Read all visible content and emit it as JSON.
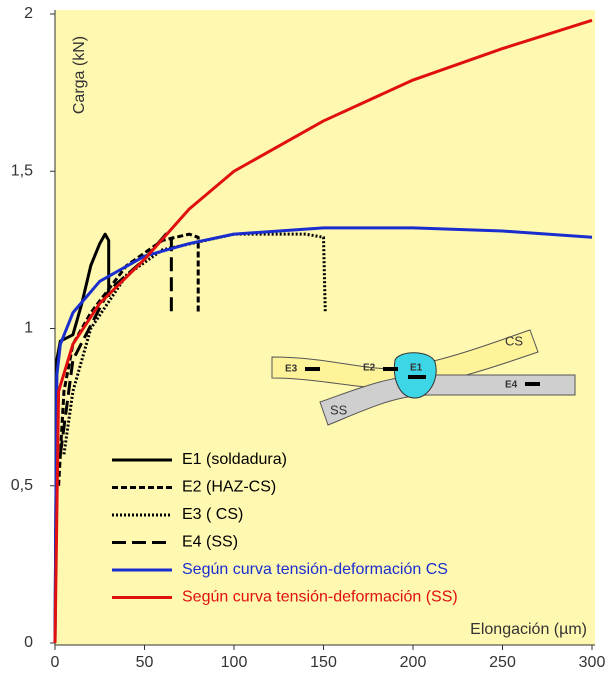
{
  "chart_data": {
    "type": "line",
    "ylabel": "Carga (kN)",
    "xlabel": "Elongación (µm)",
    "xlim": [
      0,
      300
    ],
    "ylim": [
      0,
      2
    ],
    "xticks": [
      0,
      50,
      100,
      150,
      200,
      250,
      300
    ],
    "yticks": [
      0,
      {
        "value": 0.5,
        "label": "0,5"
      },
      1,
      {
        "value": 1.5,
        "label": "1,5"
      },
      2
    ],
    "background": "#fff8b0",
    "series": [
      {
        "name": "E1 (soldadura)",
        "color": "#000000",
        "dash": "none",
        "x": [
          0,
          1,
          3,
          10,
          15,
          20,
          25,
          28,
          30,
          30
        ],
        "values": [
          0,
          0.9,
          0.96,
          0.98,
          1.08,
          1.2,
          1.27,
          1.3,
          1.28,
          1.1
        ]
      },
      {
        "name": "E2 (HAZ-CS)",
        "color": "#000000",
        "dash": "6,3",
        "x": [
          2,
          5,
          10,
          20,
          40,
          60,
          75,
          80,
          80
        ],
        "values": [
          0.5,
          0.8,
          0.95,
          1.05,
          1.2,
          1.28,
          1.3,
          1.29,
          1.05
        ]
      },
      {
        "name": "E3 ( CS)",
        "color": "#000000",
        "dash": "2,2",
        "x": [
          5,
          10,
          20,
          40,
          60,
          100,
          140,
          150,
          151
        ],
        "values": [
          0.6,
          0.8,
          1.0,
          1.17,
          1.25,
          1.3,
          1.3,
          1.29,
          1.05
        ]
      },
      {
        "name": "E4 (SS)",
        "color": "#000000",
        "dash": "14,6",
        "x": [
          3,
          10,
          30,
          50,
          62,
          65,
          65
        ],
        "values": [
          0.6,
          0.9,
          1.12,
          1.22,
          1.3,
          1.29,
          1.05
        ]
      },
      {
        "name": "Según curva tensión-deformación CS",
        "color": "#1a2ed0",
        "dash": "none",
        "x": [
          0,
          1,
          3,
          10,
          25,
          50,
          75,
          100,
          150,
          200,
          250,
          300
        ],
        "values": [
          0,
          0.85,
          0.95,
          1.05,
          1.15,
          1.23,
          1.27,
          1.3,
          1.32,
          1.32,
          1.31,
          1.29
        ]
      },
      {
        "name": "Según curva tensión-deformación (SS)",
        "color": "#e01010",
        "dash": "none",
        "x": [
          0,
          2,
          10,
          25,
          50,
          75,
          100,
          150,
          200,
          250,
          300
        ],
        "values": [
          0,
          0.8,
          0.95,
          1.08,
          1.22,
          1.38,
          1.5,
          1.66,
          1.79,
          1.89,
          1.98
        ]
      }
    ]
  },
  "diagram": {
    "labels": [
      "CS",
      "SS",
      "E1",
      "E2",
      "E3",
      "E4"
    ]
  }
}
